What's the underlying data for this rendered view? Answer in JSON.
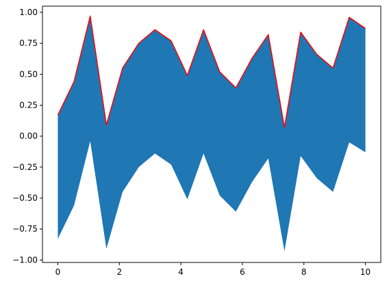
{
  "chart_data": {
    "type": "area",
    "title": "",
    "xlabel": "",
    "ylabel": "",
    "xlim": [
      -0.5,
      10.5
    ],
    "ylim": [
      -1.02,
      1.05
    ],
    "grid": false,
    "x": [
      0,
      0.526,
      1.053,
      1.579,
      2.105,
      2.632,
      3.158,
      3.684,
      4.211,
      4.737,
      5.263,
      5.789,
      6.316,
      6.842,
      7.368,
      7.895,
      8.421,
      8.947,
      9.474,
      10
    ],
    "series": [
      {
        "role": "upper",
        "color": "#ff0000",
        "values": [
          0.17,
          0.44,
          0.97,
          0.09,
          0.55,
          0.75,
          0.86,
          0.77,
          0.49,
          0.86,
          0.52,
          0.39,
          0.63,
          0.82,
          0.07,
          0.84,
          0.66,
          0.55,
          0.96,
          0.87
        ]
      },
      {
        "role": "lower",
        "color": "#1f77b4",
        "values": [
          -0.83,
          -0.56,
          -0.04,
          -0.91,
          -0.45,
          -0.25,
          -0.14,
          -0.23,
          -0.51,
          -0.14,
          -0.48,
          -0.61,
          -0.37,
          -0.18,
          -0.93,
          -0.16,
          -0.34,
          -0.45,
          -0.05,
          -0.13
        ]
      }
    ],
    "fill_color": "#1f77b4",
    "line_color": "#ff0000",
    "xticks": [
      0,
      2,
      4,
      6,
      8,
      10
    ],
    "xtick_labels": [
      "0",
      "2",
      "4",
      "6",
      "8",
      "10"
    ],
    "yticks": [
      -1.0,
      -0.75,
      -0.5,
      -0.25,
      0.0,
      0.25,
      0.5,
      0.75,
      1.0
    ],
    "ytick_labels": [
      "−1.00",
      "−0.75",
      "−0.50",
      "−0.25",
      "0.00",
      "0.25",
      "0.50",
      "0.75",
      "1.00"
    ]
  }
}
